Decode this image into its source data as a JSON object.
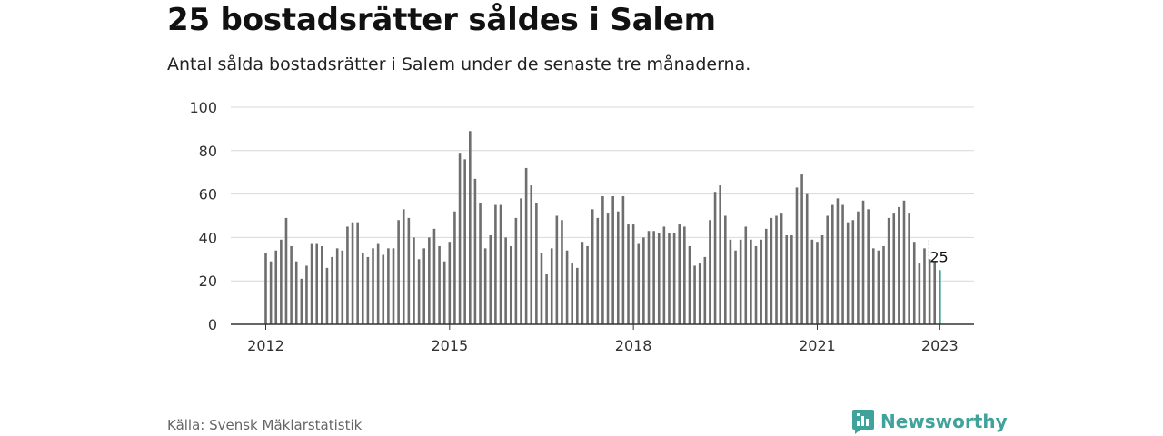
{
  "header": {
    "title": "25 bostadsrätter såldes i Salem",
    "subtitle": "Antal sålda bostadsrätter i Salem under de senaste tre månaderna."
  },
  "footer": {
    "source": "Källa: Svensk Mäklarstatistik",
    "brand": "Newsworthy"
  },
  "colors": {
    "bar": "#6e6e6e",
    "highlight": "#3fa39b",
    "grid": "#d9d9d9",
    "axis": "#333333",
    "brand": "#3fa39b"
  },
  "icons": {
    "brand_logo": "bar-chart-speech-bubble-icon"
  },
  "chart_data": {
    "type": "bar",
    "title": "25 bostadsrätter såldes i Salem",
    "subtitle": "Antal sålda bostadsrätter i Salem under de senaste tre månaderna.",
    "xlabel": "",
    "ylabel": "",
    "x_start": "2012-01",
    "frequency": "monthly",
    "ylim": [
      0,
      100
    ],
    "yticks": [
      0,
      20,
      40,
      60,
      80,
      100
    ],
    "xticks": [
      {
        "label": "2012",
        "date": "2012-01"
      },
      {
        "label": "2015",
        "date": "2015-01"
      },
      {
        "label": "2018",
        "date": "2018-01"
      },
      {
        "label": "2021",
        "date": "2021-01"
      },
      {
        "label": "2023",
        "date": "2023-01"
      }
    ],
    "grid": true,
    "legend": "none",
    "highlight_index": 132,
    "highlight_label": "25",
    "values": [
      33,
      29,
      34,
      39,
      49,
      36,
      29,
      21,
      27,
      37,
      37,
      36,
      26,
      31,
      35,
      34,
      45,
      47,
      47,
      33,
      31,
      35,
      37,
      32,
      35,
      35,
      48,
      53,
      49,
      40,
      30,
      35,
      40,
      44,
      36,
      29,
      38,
      52,
      79,
      76,
      89,
      67,
      56,
      35,
      41,
      55,
      55,
      40,
      36,
      49,
      58,
      72,
      64,
      56,
      33,
      23,
      35,
      50,
      48,
      34,
      28,
      26,
      38,
      36,
      53,
      49,
      59,
      51,
      59,
      52,
      59,
      46,
      46,
      37,
      40,
      43,
      43,
      42,
      45,
      42,
      42,
      46,
      45,
      36,
      27,
      28,
      31,
      48,
      61,
      64,
      50,
      39,
      34,
      39,
      45,
      39,
      36,
      39,
      44,
      49,
      50,
      51,
      41,
      41,
      63,
      69,
      60,
      39,
      38,
      41,
      50,
      55,
      58,
      55,
      47,
      48,
      52,
      57,
      53,
      35,
      34,
      36,
      49,
      51,
      54,
      57,
      51,
      38,
      28,
      35,
      30,
      29,
      25
    ]
  }
}
